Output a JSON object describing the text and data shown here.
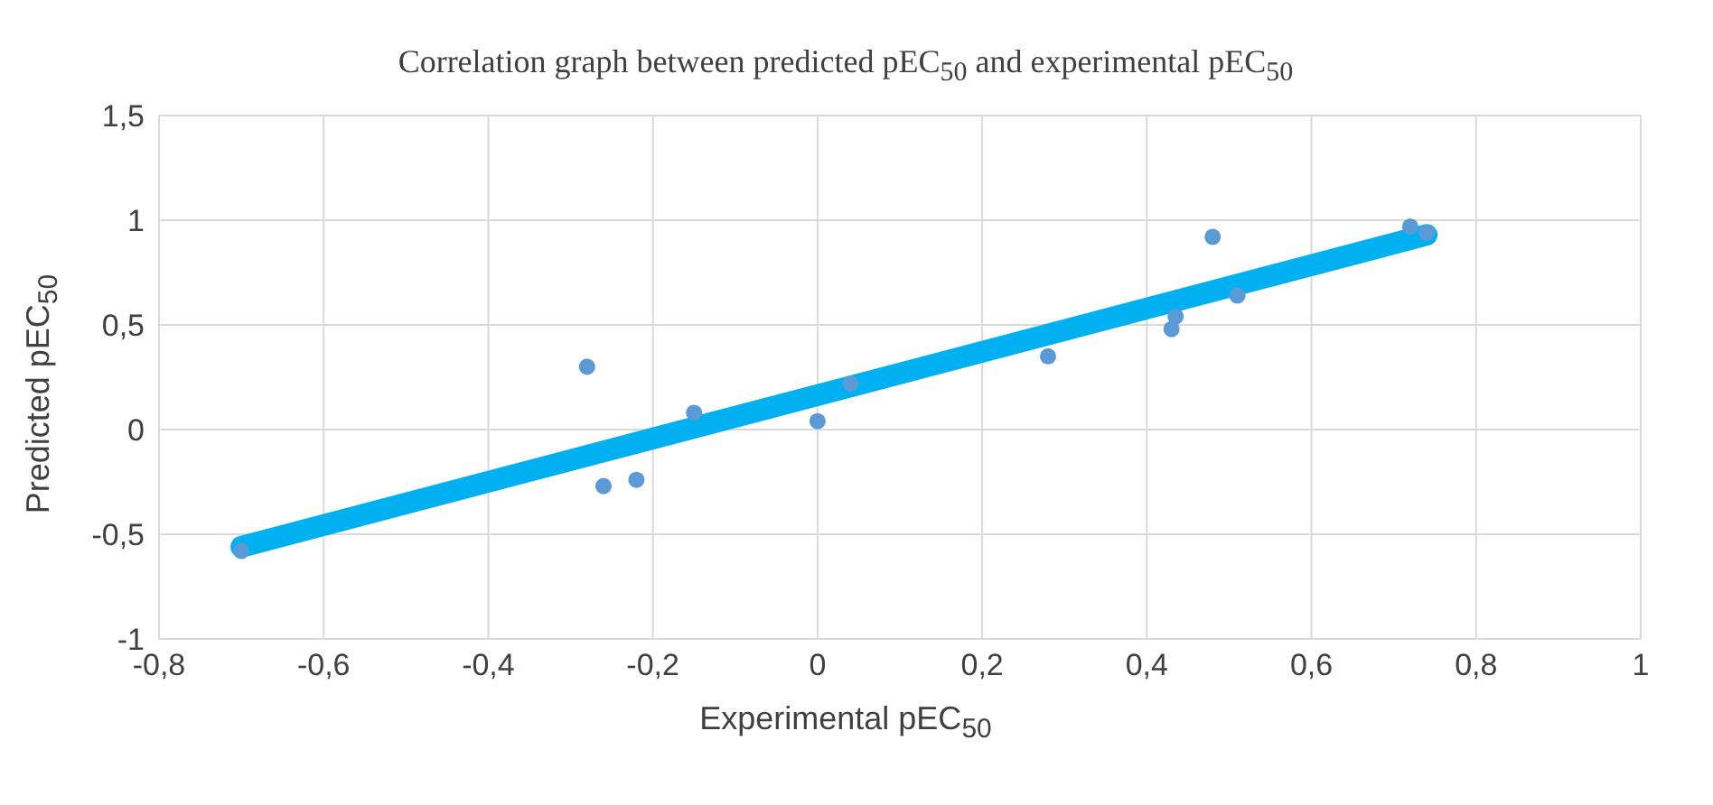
{
  "chart_data": {
    "type": "scatter",
    "title": "Correlation graph between predicted pEC$_{50}$ and experimental pEC$_{50}$",
    "xlabel": "Experimental pEC$_{50}$",
    "ylabel": "Predicted pEC$_{50}$",
    "series": [
      {
        "color": "#5b9bd5",
        "marker": "circle",
        "x": [
          -0.7,
          -0.28,
          -0.26,
          -0.22,
          -0.15,
          0.0,
          0.04,
          0.28,
          0.43,
          0.435,
          0.48,
          0.51,
          0.72,
          0.74
        ],
        "values": [
          -0.58,
          0.3,
          -0.27,
          -0.24,
          0.08,
          0.04,
          0.22,
          0.35,
          0.48,
          0.54,
          0.92,
          0.64,
          0.97,
          0.94
        ]
      },
      {
        "type": "line",
        "color": "#00b0f0",
        "x": [
          -0.7,
          0.74
        ],
        "values": [
          -0.56,
          0.93
        ]
      }
    ],
    "xlim": [
      -0.8,
      1
    ],
    "xticks": [
      {
        "value": -0.8,
        "label": "-0,8"
      },
      {
        "value": -0.6,
        "label": "-0,6"
      },
      {
        "value": -0.4,
        "label": "-0,4"
      },
      {
        "value": -0.2,
        "label": "-0,2"
      },
      0,
      {
        "value": 0.2,
        "label": "0,2"
      },
      {
        "value": 0.4,
        "label": "0,4"
      },
      {
        "value": 0.6,
        "label": "0,6"
      },
      {
        "value": 0.8,
        "label": "0,8"
      },
      1
    ],
    "ylim": [
      -1,
      1.5
    ],
    "yticks": [
      -1,
      {
        "value": -0.5,
        "label": "-0,5"
      },
      0,
      {
        "value": 0.5,
        "label": "0,5"
      },
      1,
      {
        "value": 1.5,
        "label": "1,5"
      }
    ],
    "grid": true,
    "legend": false
  }
}
